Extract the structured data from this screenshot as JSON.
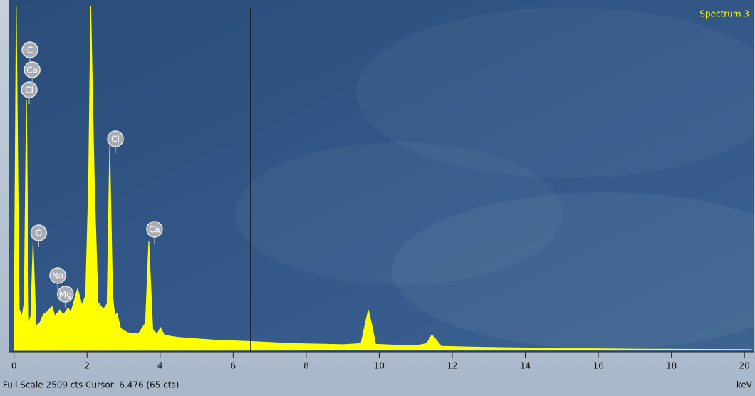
{
  "chart_data": {
    "type": "area",
    "title": "Spectrum 3",
    "x_label": "keV",
    "footer": "Full Scale 2509 cts Cursor: 6.476  (65 cts)",
    "cursor": 6.476,
    "color": "#ffff00",
    "x": [
      0.0,
      0.06,
      0.14,
      0.22,
      0.28,
      0.34,
      0.4,
      0.46,
      0.52,
      0.6,
      0.7,
      0.8,
      0.9,
      1.04,
      1.12,
      1.25,
      1.35,
      1.48,
      1.56,
      1.74,
      1.86,
      1.96,
      2.04,
      2.1,
      2.2,
      2.3,
      2.45,
      2.55,
      2.62,
      2.7,
      2.76,
      2.82,
      2.92,
      3.1,
      3.4,
      3.6,
      3.69,
      3.8,
      3.92,
      4.01,
      4.12,
      4.5,
      5.0,
      5.5,
      6.0,
      6.5,
      7.0,
      7.5,
      8.0,
      8.5,
      9.0,
      9.5,
      9.62,
      9.7,
      9.8,
      9.9,
      10.5,
      11.0,
      11.3,
      11.44,
      11.55,
      11.7,
      12.5,
      13.5,
      15.0,
      17.0,
      19.0,
      20.2
    ],
    "values": [
      0,
      2509,
      300,
      250,
      350,
      1823,
      200,
      250,
      787,
      180,
      200,
      260,
      280,
      321,
      250,
      295,
      260,
      310,
      280,
      450,
      330,
      400,
      1200,
      2509,
      1200,
      350,
      300,
      340,
      1487,
      400,
      250,
      270,
      160,
      130,
      120,
      200,
      798,
      150,
      120,
      166,
      110,
      95,
      85,
      75,
      70,
      65,
      58,
      52,
      48,
      45,
      42,
      50,
      200,
      295,
      180,
      45,
      38,
      35,
      50,
      114,
      80,
      30,
      25,
      20,
      15,
      10,
      8,
      6
    ],
    "peak_labels": [
      {
        "text": "C",
        "x": 0.28
      },
      {
        "text": "Ca",
        "x": 0.34
      },
      {
        "text": "Cl",
        "x": 0.26
      },
      {
        "text": "Cl",
        "x": 2.62
      },
      {
        "text": "O",
        "x": 0.52
      },
      {
        "text": "Na",
        "x": 1.04
      },
      {
        "text": "Mg",
        "x": 1.25
      },
      {
        "text": "Ca",
        "x": 3.69
      }
    ],
    "xlim": [
      -0.15,
      20.25
    ],
    "ylim": [
      0,
      2509
    ],
    "xticks": [
      0,
      2,
      4,
      6,
      8,
      10,
      12,
      14,
      16,
      18,
      20
    ]
  }
}
